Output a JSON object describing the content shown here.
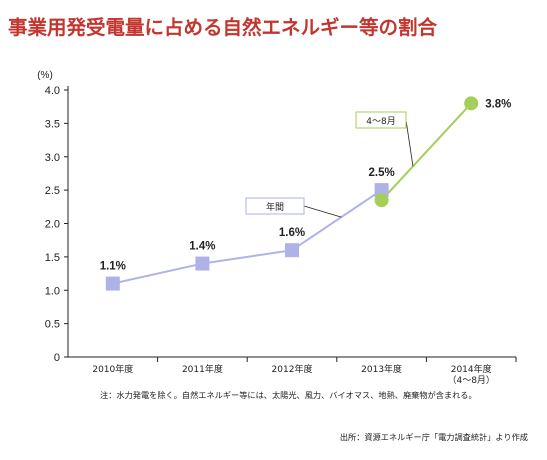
{
  "title": "事業用発受電量に占める自然エネルギー等の割合",
  "colors": {
    "title": "#c4352f",
    "annual_series": "#aeb2e6",
    "partial_series": "#a3cf5a",
    "axis": "#222222"
  },
  "chart_data": {
    "type": "line",
    "y_unit": "(%)",
    "ylim": [
      0,
      4.0
    ],
    "yticks": [
      "0",
      "0.5",
      "1.0",
      "1.5",
      "2.0",
      "2.5",
      "3.0",
      "3.5",
      "4.0"
    ],
    "grid": false,
    "categories": [
      [
        "2010年度"
      ],
      [
        "2011年度"
      ],
      [
        "2012年度"
      ],
      [
        "2013年度"
      ],
      [
        "2014年度",
        "（4〜8月）"
      ]
    ],
    "series": [
      {
        "name": "年間",
        "marker": "square",
        "color": "#aeb2e6",
        "points": [
          [
            0,
            1.1
          ],
          [
            1,
            1.4
          ],
          [
            2,
            1.6
          ],
          [
            3,
            2.5
          ]
        ]
      },
      {
        "name": "4〜8月",
        "marker": "circle",
        "color": "#a3cf5a",
        "points": [
          [
            3,
            2.35
          ],
          [
            4,
            3.8
          ]
        ]
      }
    ],
    "data_labels": [
      {
        "x": 0,
        "y": 1.1,
        "text": "1.1%"
      },
      {
        "x": 1,
        "y": 1.4,
        "text": "1.4%"
      },
      {
        "x": 2,
        "y": 1.6,
        "text": "1.6%"
      },
      {
        "x": 3,
        "y": 2.5,
        "text": "2.5%"
      },
      {
        "x": 4,
        "y": 3.8,
        "text": "3.8%"
      }
    ]
  },
  "notes": {
    "footnote": "注：水力発電を除く。自然エネルギー等には、太陽光、風力、バイオマス、地熱、廃棄物が含まれる。",
    "source": "出所：資源エネルギー庁「電力調査統計」より作成"
  }
}
